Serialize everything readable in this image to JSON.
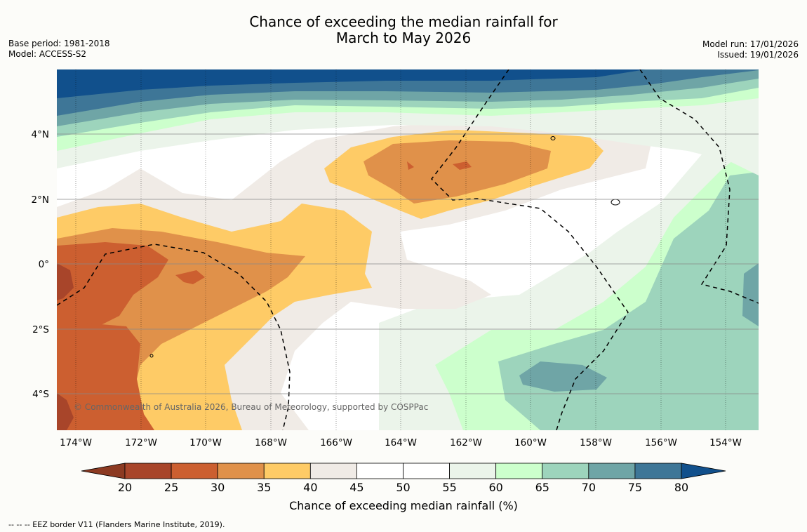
{
  "title_line1": "Chance of exceeding the median rainfall for",
  "title_line2": "March to May 2026",
  "base_period": "Base period: 1981-2018",
  "model": "Model: ACCESS-S2",
  "model_run": "Model run: 17/01/2026",
  "issued": "Issued: 19/01/2026",
  "copyright": "© Commonwealth of Australia 2026, Bureau of Meteorology, supported by COSPPac",
  "x_ticks": [
    "174°W",
    "172°W",
    "170°W",
    "168°W",
    "166°W",
    "164°W",
    "162°W",
    "160°W",
    "158°W",
    "156°W",
    "154°W"
  ],
  "y_ticks": [
    "4°N",
    "2°N",
    "0°",
    "2°S",
    "4°S"
  ],
  "colorbar": {
    "label": "Chance of exceeding median rainfall (%)",
    "ticks": [
      "20",
      "25",
      "30",
      "35",
      "40",
      "45",
      "50",
      "55",
      "60",
      "65",
      "70",
      "75",
      "80"
    ],
    "colors": [
      "#a8452a",
      "#cc5f30",
      "#e0914a",
      "#fecb66",
      "#f0ebe6",
      "#ffffff",
      "#ffffff",
      "#ebf4ea",
      "#ccffcc",
      "#9dd4bc",
      "#6fa5a6",
      "#3e7697"
    ],
    "low_extend": "#8c3a22",
    "high_extend": "#11508c"
  },
  "legend_note": "--  --  -- EEZ border V11 (Flanders Marine Institute, 2019)."
}
